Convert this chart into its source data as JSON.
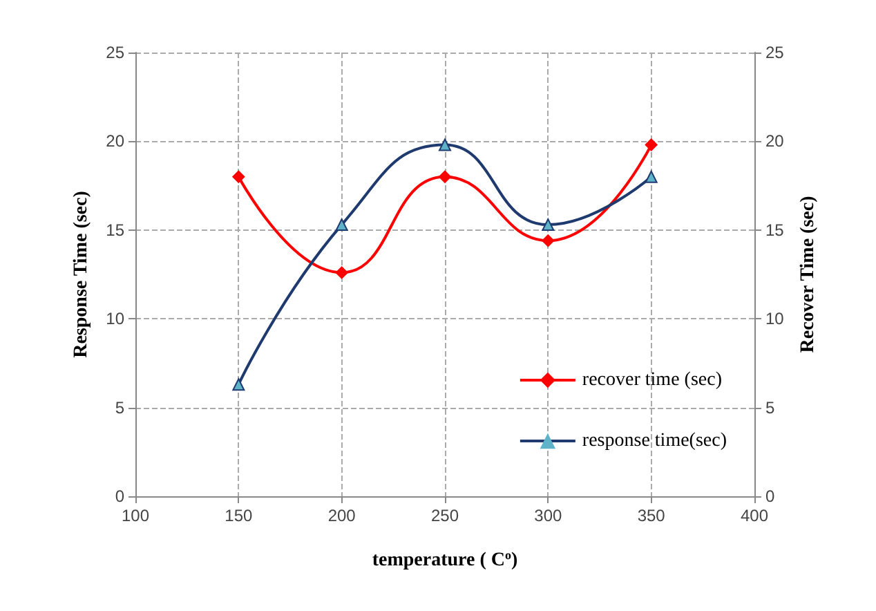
{
  "chart_data": {
    "type": "line",
    "xlabel": "temperature ( C$^{o}$)",
    "ylabel": "Response Time (sec)",
    "y2label": "Recover Time (sec)",
    "x": [
      150,
      200,
      250,
      300,
      350
    ],
    "series": [
      {
        "name": "recover time (sec)",
        "color": "#ff0000",
        "marker": "diamond",
        "axis": "y2",
        "values": [
          18,
          12.6,
          18,
          14.4,
          19.8
        ]
      },
      {
        "name": "response time(sec)",
        "color": "#1f3a6e",
        "marker": "triangle",
        "values": [
          6.3,
          15.3,
          19.8,
          15.3,
          18
        ]
      }
    ],
    "xlim": [
      100,
      400
    ],
    "xticks": [
      100,
      150,
      200,
      250,
      300,
      350,
      400
    ],
    "ylim": [
      0,
      25
    ],
    "yticks": [
      0,
      5,
      10,
      15,
      20,
      25
    ],
    "y2lim": [
      0,
      25
    ],
    "y2ticks": [
      0,
      5,
      10,
      15,
      20,
      25
    ],
    "grid": true,
    "legend": "right"
  }
}
